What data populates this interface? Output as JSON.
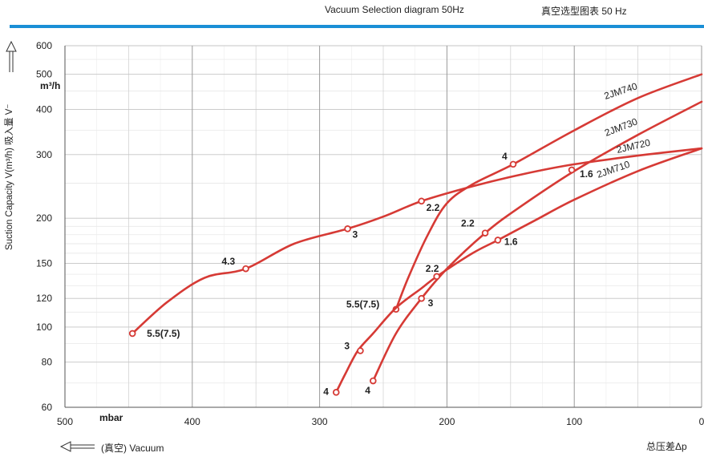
{
  "header": {
    "title_en": "Vacuum Selection diagram 50Hz",
    "title_cn": "真空选型图表 50 Hz"
  },
  "chart_data": {
    "type": "line",
    "title": "Vacuum Selection diagram 50Hz",
    "ylabel": "Suction Capacity V(m³/h)  吸入量 V⁻",
    "yunit": "m³/h",
    "xunit": "mbar",
    "xlabel_left": "(真空) Vacuum",
    "xlabel_right": "总压差Δp",
    "x_axis": {
      "min": 0,
      "max": 500,
      "reversed": true,
      "ticks": [
        500,
        400,
        300,
        200,
        100,
        0
      ]
    },
    "y_axis": {
      "scale": "log",
      "min": 60,
      "max": 600,
      "ticks": [
        60,
        80,
        100,
        120,
        150,
        200,
        300,
        400,
        500,
        600
      ]
    },
    "grid": true,
    "series": [
      {
        "name": "2JM740",
        "color": "#d63a35",
        "points": [
          [
            240,
            112
          ],
          [
            230,
            138
          ],
          [
            215,
            180
          ],
          [
            200,
            220
          ],
          [
            180,
            248
          ],
          [
            148,
            282
          ],
          [
            100,
            350
          ],
          [
            50,
            430
          ],
          [
            0,
            500
          ]
        ],
        "markers": [
          {
            "x": 240,
            "y": 112,
            "label": "5.5(7.5)"
          },
          {
            "x": 148,
            "y": 282,
            "label": "4"
          }
        ]
      },
      {
        "name": "2JM730",
        "color": "#d63a35",
        "points": [
          [
            258,
            71
          ],
          [
            240,
            96
          ],
          [
            220,
            120
          ],
          [
            200,
            145
          ],
          [
            170,
            182
          ],
          [
            145,
            212
          ],
          [
            100,
            270
          ],
          [
            50,
            340
          ],
          [
            0,
            420
          ]
        ],
        "markers": [
          {
            "x": 258,
            "y": 71,
            "label": "4"
          },
          {
            "x": 220,
            "y": 120,
            "label": "3"
          },
          {
            "x": 170,
            "y": 182,
            "label": "2.2"
          },
          {
            "x": 102,
            "y": 272,
            "label": "1.6"
          }
        ]
      },
      {
        "name": "2JM720",
        "color": "#d63a35",
        "points": [
          [
            447,
            96
          ],
          [
            420,
            117
          ],
          [
            390,
            137
          ],
          [
            358,
            145
          ],
          [
            320,
            170
          ],
          [
            278,
            187
          ],
          [
            250,
            202
          ],
          [
            220,
            223
          ],
          [
            180,
            245
          ],
          [
            140,
            265
          ],
          [
            100,
            282
          ],
          [
            50,
            298
          ],
          [
            0,
            312
          ]
        ],
        "markers": [
          {
            "x": 447,
            "y": 96,
            "label": "5.5(7.5)"
          },
          {
            "x": 358,
            "y": 145,
            "label": "4.3"
          },
          {
            "x": 278,
            "y": 187,
            "label": "3"
          },
          {
            "x": 220,
            "y": 223,
            "label": "2.2"
          }
        ]
      },
      {
        "name": "2JM710",
        "color": "#d63a35",
        "points": [
          [
            287,
            66
          ],
          [
            280,
            74
          ],
          [
            270,
            86
          ],
          [
            258,
            96
          ],
          [
            240,
            113
          ],
          [
            220,
            128
          ],
          [
            208,
            138
          ],
          [
            180,
            160
          ],
          [
            160,
            174
          ],
          [
            130,
            198
          ],
          [
            100,
            225
          ],
          [
            50,
            270
          ],
          [
            0,
            312
          ]
        ],
        "markers": [
          {
            "x": 287,
            "y": 66,
            "label": "4"
          },
          {
            "x": 268,
            "y": 86,
            "label": "3"
          },
          {
            "x": 208,
            "y": 138,
            "label": "2.2"
          },
          {
            "x": 160,
            "y": 174,
            "label": "1.6"
          }
        ]
      }
    ]
  }
}
